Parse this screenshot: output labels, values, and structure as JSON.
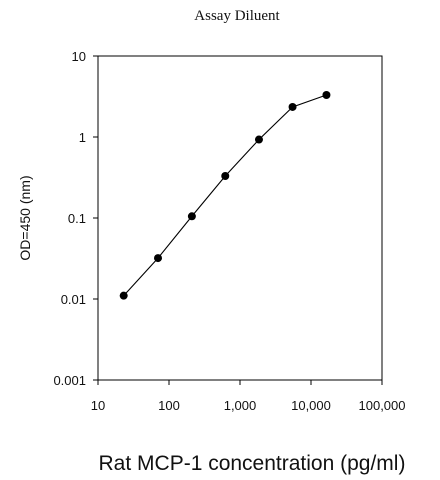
{
  "chart_data": {
    "type": "line",
    "title": "Assay Diluent",
    "xlabel": "Rat MCP-1 concentration (pg/ml)",
    "ylabel": "OD=450 (nm)",
    "xscale": "log",
    "yscale": "log",
    "xlim": [
      10,
      100000
    ],
    "ylim": [
      0.001,
      10
    ],
    "x_ticks": [
      10,
      100,
      1000,
      10000,
      100000
    ],
    "x_tick_labels": [
      "10",
      "100",
      "1,000",
      "10,000",
      "100,000"
    ],
    "y_ticks": [
      10,
      1,
      0.1,
      0.01,
      0.001
    ],
    "y_tick_labels": [
      "10",
      "1",
      "0.1",
      "0.01",
      "0.001"
    ],
    "grid": false,
    "series": [
      {
        "x": [
          23,
          70,
          210,
          620,
          1850,
          5500,
          16500
        ],
        "y": [
          0.011,
          0.032,
          0.105,
          0.33,
          0.93,
          2.35,
          3.3
        ],
        "color": "#000000",
        "marker": "circle"
      }
    ]
  }
}
